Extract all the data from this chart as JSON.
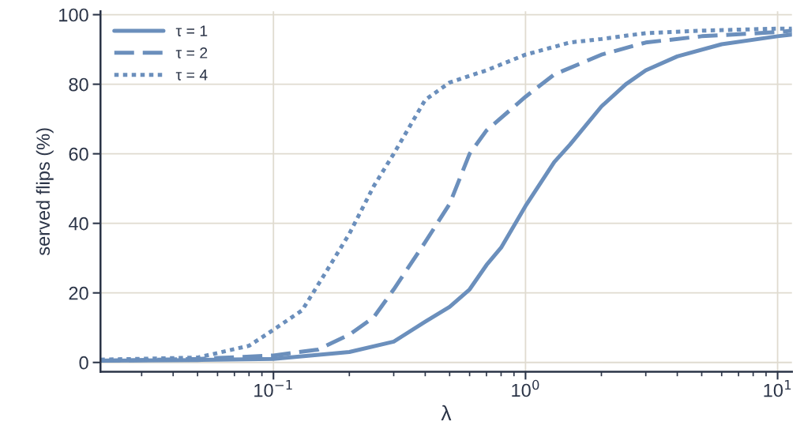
{
  "chart_data": {
    "type": "line",
    "xlabel": "λ",
    "ylabel": "served flips (%)",
    "log": "x",
    "xlim": [
      0.0206,
      11.4
    ],
    "ylim": [
      -2.7,
      101
    ],
    "xticks": [
      {
        "value": 0.1,
        "label": "10$^{−1}$"
      },
      {
        "value": 1,
        "label": "10$^{0}$"
      },
      {
        "value": 10,
        "label": "10$^{1}$"
      }
    ],
    "yticks": [
      0,
      20,
      40,
      60,
      80,
      100
    ],
    "grid": true,
    "legend": "top left",
    "series": [
      {
        "name": "τ = 1",
        "color": "#6b8fbc",
        "line_style": "solid",
        "x": [
          0.0206,
          0.05,
          0.1,
          0.2,
          0.3,
          0.4,
          0.5,
          0.6,
          0.7,
          0.8,
          1.0,
          1.3,
          1.5,
          2,
          2.5,
          3,
          4,
          6,
          10,
          11.4
        ],
        "values": [
          0.5,
          0.7,
          1,
          3,
          6,
          11.7,
          16,
          21,
          28,
          33,
          45,
          57.6,
          62.6,
          73.6,
          80,
          84,
          88,
          91.5,
          93.8,
          94.3
        ]
      },
      {
        "name": "τ = 2",
        "color": "#6b8fbc",
        "line_style": "dashed",
        "x": [
          0.0206,
          0.05,
          0.1,
          0.15,
          0.2,
          0.25,
          0.3,
          0.4,
          0.5,
          0.6,
          0.7,
          1.0,
          1.3,
          2,
          3,
          5,
          10,
          11.4
        ],
        "values": [
          0.5,
          1,
          2,
          3.7,
          8,
          13,
          21,
          34.6,
          45.6,
          60,
          66.7,
          76.4,
          82.8,
          88.5,
          92,
          93.8,
          95,
          95.4
        ]
      },
      {
        "name": "τ = 4",
        "color": "#6b8fbc",
        "line_style": "dotted",
        "x": [
          0.0206,
          0.05,
          0.08,
          0.1,
          0.13,
          0.16,
          0.2,
          0.25,
          0.3,
          0.4,
          0.5,
          0.7,
          1.0,
          1.5,
          2,
          3,
          5,
          10,
          11.4
        ],
        "values": [
          0.8,
          1.4,
          4.8,
          9.4,
          15,
          25.5,
          37,
          50.7,
          60,
          75.5,
          80.5,
          84,
          88.5,
          92,
          93,
          94.7,
          95.4,
          96,
          96
        ]
      }
    ]
  }
}
